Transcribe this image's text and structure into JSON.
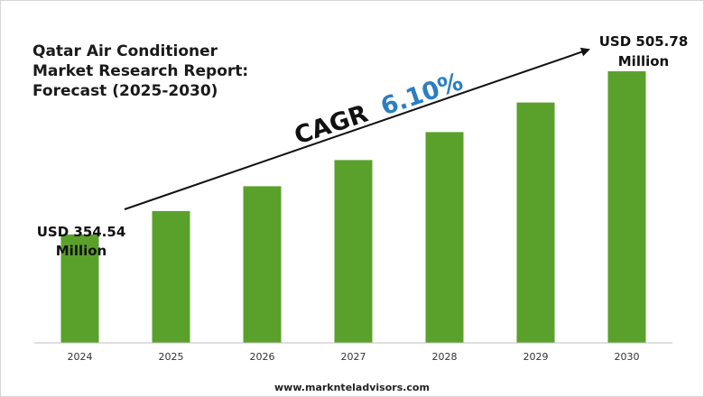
{
  "title": "Qatar Air Conditioner\nMarket Research Report:\nForecast (2025-2030)",
  "footer": "www.marknteladvisors.com",
  "colors": {
    "bar": "#5aa12b",
    "cagr_value": "#2b7ec1",
    "text": "#111111",
    "axis": "#bfbfbf"
  },
  "chart_data": {
    "type": "bar",
    "categories": [
      "2024",
      "2025",
      "2026",
      "2027",
      "2028",
      "2029",
      "2030"
    ],
    "values": [
      354.54,
      376.2,
      399.2,
      423.5,
      449.4,
      476.8,
      505.78
    ],
    "ylim": [
      254,
      525
    ],
    "grid": false,
    "legend": "none",
    "annotations": {
      "start_value": "USD 354.54",
      "start_unit": "Million",
      "end_value": "USD 505.78",
      "end_unit": "Million",
      "cagr_label": "CAGR",
      "cagr_value": "6.10%"
    }
  }
}
